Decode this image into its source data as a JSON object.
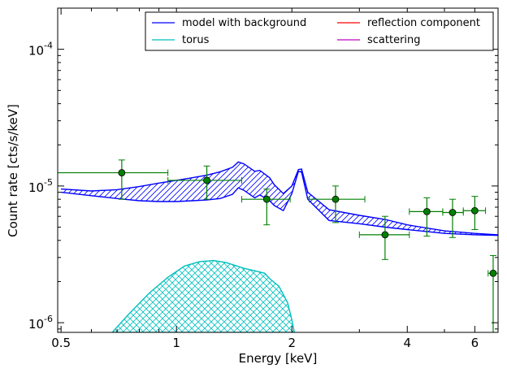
{
  "chart_data": {
    "type": "line",
    "xlabel": "Energy [keV]",
    "ylabel": "Count rate [cts/s/keV]",
    "x_scale": "log",
    "y_scale": "log",
    "xlim": [
      0.49,
      6.9
    ],
    "ylim": [
      8.5e-07,
      0.0002
    ],
    "x_ticks": [
      {
        "value": 0.5,
        "label": "0.5"
      },
      {
        "value": 1,
        "label": "1"
      },
      {
        "value": 2,
        "label": "2"
      },
      {
        "value": 4,
        "label": "4"
      },
      {
        "value": 6,
        "label": "6"
      }
    ],
    "y_ticks": [
      {
        "value": 1e-06,
        "label_base": "10",
        "label_exp": "-6"
      },
      {
        "value": 1e-05,
        "label_base": "10",
        "label_exp": "-5"
      },
      {
        "value": 0.0001,
        "label_base": "10",
        "label_exp": "-4"
      }
    ],
    "grid": false,
    "legend": {
      "placement": "top-right",
      "columns": 2,
      "entries": [
        {
          "name": "model with background",
          "color": "#0000ff"
        },
        {
          "name": "reflection component",
          "color": "#ff0000"
        },
        {
          "name": "torus",
          "color": "#00bfbf"
        },
        {
          "name": "scattering",
          "color": "#bf00bf"
        }
      ]
    },
    "series": [
      {
        "name": "model with background",
        "kind": "band",
        "color": "#0000ff",
        "upper": [
          [
            0.5,
            9.5e-06
          ],
          [
            0.6,
            9.2e-06
          ],
          [
            0.7,
            9.4e-06
          ],
          [
            0.8,
            9.9e-06
          ],
          [
            0.9,
            1.05e-05
          ],
          [
            1.0,
            1.1e-05
          ],
          [
            1.1,
            1.15e-05
          ],
          [
            1.2,
            1.2e-05
          ],
          [
            1.3,
            1.27e-05
          ],
          [
            1.4,
            1.37e-05
          ],
          [
            1.45,
            1.5e-05
          ],
          [
            1.5,
            1.45e-05
          ],
          [
            1.6,
            1.28e-05
          ],
          [
            1.65,
            1.3e-05
          ],
          [
            1.75,
            1.15e-05
          ],
          [
            1.8,
            1.02e-05
          ],
          [
            1.9,
            8.8e-06
          ],
          [
            2.0,
            1e-05
          ],
          [
            2.08,
            1.32e-05
          ],
          [
            2.12,
            1.33e-05
          ],
          [
            2.2,
            9e-06
          ],
          [
            2.5,
            6.7e-06
          ],
          [
            3.0,
            6.1e-06
          ],
          [
            3.5,
            5.7e-06
          ],
          [
            4.0,
            5.2e-06
          ],
          [
            5.0,
            4.7e-06
          ],
          [
            6.0,
            4.5e-06
          ],
          [
            6.9,
            4.4e-06
          ]
        ],
        "lower": [
          [
            0.5,
            9e-06
          ],
          [
            0.6,
            8.5e-06
          ],
          [
            0.7,
            8.1e-06
          ],
          [
            0.8,
            7.8e-06
          ],
          [
            0.9,
            7.7e-06
          ],
          [
            1.0,
            7.7e-06
          ],
          [
            1.1,
            7.8e-06
          ],
          [
            1.2,
            7.9e-06
          ],
          [
            1.3,
            8.1e-06
          ],
          [
            1.4,
            8.7e-06
          ],
          [
            1.45,
            9.7e-06
          ],
          [
            1.5,
            9.3e-06
          ],
          [
            1.6,
            8.2e-06
          ],
          [
            1.65,
            8.6e-06
          ],
          [
            1.75,
            7.8e-06
          ],
          [
            1.8,
            7.2e-06
          ],
          [
            1.9,
            6.6e-06
          ],
          [
            2.0,
            8.8e-06
          ],
          [
            2.08,
            1.28e-05
          ],
          [
            2.12,
            1.26e-05
          ],
          [
            2.2,
            8e-06
          ],
          [
            2.5,
            5.6e-06
          ],
          [
            3.0,
            5.3e-06
          ],
          [
            3.5,
            5e-06
          ],
          [
            4.0,
            4.8e-06
          ],
          [
            5.0,
            4.5e-06
          ],
          [
            6.0,
            4.4e-06
          ],
          [
            6.9,
            4.35e-06
          ]
        ]
      },
      {
        "name": "torus",
        "kind": "band",
        "color": "#00bfbf",
        "upper": [
          [
            0.68,
            8.5e-07
          ],
          [
            0.75,
            1.15e-06
          ],
          [
            0.85,
            1.65e-06
          ],
          [
            0.95,
            2.15e-06
          ],
          [
            1.05,
            2.6e-06
          ],
          [
            1.15,
            2.8e-06
          ],
          [
            1.25,
            2.85e-06
          ],
          [
            1.35,
            2.75e-06
          ],
          [
            1.5,
            2.5e-06
          ],
          [
            1.6,
            2.4e-06
          ],
          [
            1.7,
            2.3e-06
          ],
          [
            1.75,
            2.1e-06
          ],
          [
            1.85,
            1.85e-06
          ],
          [
            1.95,
            1.4e-06
          ],
          [
            2.0,
            1.05e-06
          ],
          [
            2.03,
            8.5e-07
          ]
        ],
        "lower": [
          [
            0.68,
            8.5e-07
          ],
          [
            2.03,
            8.5e-07
          ]
        ]
      }
    ],
    "data_points": {
      "name": "data",
      "color": "#008000",
      "points": [
        {
          "x": 0.72,
          "y": 1.25e-05,
          "xerr_lo": 0.49,
          "xerr_hi": 0.95,
          "yerr_lo": 8e-06,
          "yerr_hi": 1.55e-05
        },
        {
          "x": 1.2,
          "y": 1.1e-05,
          "xerr_lo": 0.95,
          "xerr_hi": 1.48,
          "yerr_lo": 8e-06,
          "yerr_hi": 1.4e-05
        },
        {
          "x": 1.72,
          "y": 8e-06,
          "xerr_lo": 1.48,
          "xerr_hi": 1.98,
          "yerr_lo": 5.2e-06,
          "yerr_hi": 9.5e-06
        },
        {
          "x": 2.6,
          "y": 8e-06,
          "xerr_lo": 2.22,
          "xerr_hi": 3.1,
          "yerr_lo": 5.4e-06,
          "yerr_hi": 1e-05
        },
        {
          "x": 3.5,
          "y": 4.4e-06,
          "xerr_lo": 3.0,
          "xerr_hi": 4.05,
          "yerr_lo": 2.9e-06,
          "yerr_hi": 6e-06
        },
        {
          "x": 4.5,
          "y": 6.5e-06,
          "xerr_lo": 4.05,
          "xerr_hi": 4.95,
          "yerr_lo": 4.3e-06,
          "yerr_hi": 8.2e-06
        },
        {
          "x": 5.25,
          "y": 6.4e-06,
          "xerr_lo": 4.95,
          "xerr_hi": 5.6,
          "yerr_lo": 4.2e-06,
          "yerr_hi": 8e-06
        },
        {
          "x": 6.0,
          "y": 6.6e-06,
          "xerr_lo": 5.6,
          "xerr_hi": 6.4,
          "yerr_lo": 4.8e-06,
          "yerr_hi": 8.4e-06
        },
        {
          "x": 6.7,
          "y": 2.3e-06,
          "xerr_lo": 6.5,
          "xerr_hi": 6.9,
          "yerr_lo": 8.5e-07,
          "yerr_hi": 3.1e-06
        }
      ]
    }
  }
}
